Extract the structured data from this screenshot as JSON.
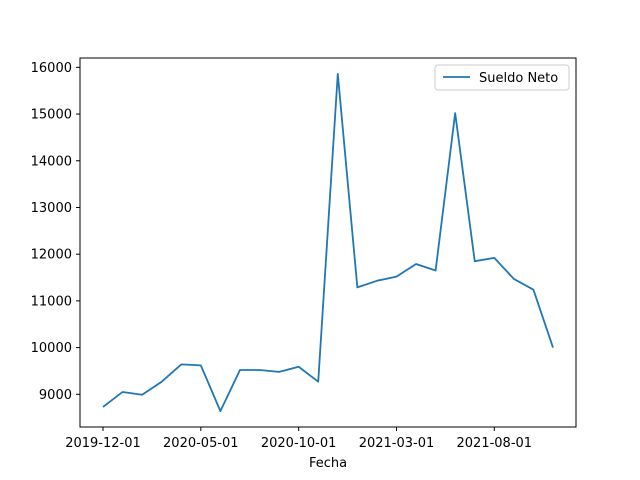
{
  "chart_data": {
    "type": "line",
    "xlabel": "Fecha",
    "ylabel": "",
    "x": [
      "2019-12-01",
      "2020-01-01",
      "2020-02-01",
      "2020-03-01",
      "2020-04-01",
      "2020-05-01",
      "2020-06-01",
      "2020-07-01",
      "2020-08-01",
      "2020-09-01",
      "2020-10-01",
      "2020-11-01",
      "2020-12-01",
      "2021-01-01",
      "2021-02-01",
      "2021-03-01",
      "2021-04-01",
      "2021-05-01",
      "2021-06-01",
      "2021-07-01",
      "2021-08-01",
      "2021-09-01",
      "2021-10-01",
      "2021-11-01"
    ],
    "x_ticks": [
      "2019-12-01",
      "2020-05-01",
      "2020-10-01",
      "2021-03-01",
      "2021-08-01"
    ],
    "ylim": [
      8300,
      16200
    ],
    "y_ticks": [
      9000,
      10000,
      11000,
      12000,
      13000,
      14000,
      15000,
      16000
    ],
    "series": [
      {
        "name": "Sueldo Neto",
        "color": "#1f77b4",
        "values": [
          8730,
          9050,
          8990,
          9270,
          9640,
          9620,
          8640,
          9520,
          9520,
          9480,
          9590,
          9270,
          15860,
          11290,
          11430,
          11520,
          11790,
          11650,
          15020,
          11850,
          11920,
          11470,
          11240,
          10000
        ]
      }
    ],
    "legend_position": "top-right",
    "grid": false
  }
}
